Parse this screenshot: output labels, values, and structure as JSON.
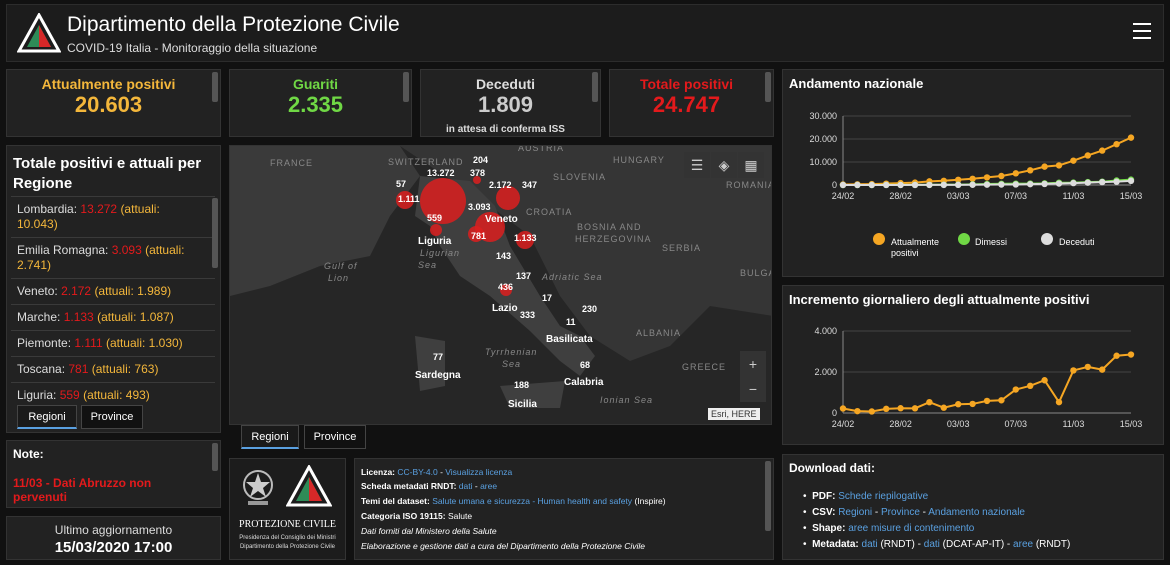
{
  "header": {
    "title": "Dipartimento della Protezione Civile",
    "subtitle": "COVID-19 Italia - Monitoraggio della situazione"
  },
  "stats": {
    "attualmente_positivi": {
      "label": "Attualmente positivi",
      "value": "20.603",
      "color": "#f4b73b"
    },
    "guariti": {
      "label": "Guariti",
      "value": "2.335",
      "color": "#70d845"
    },
    "deceduti": {
      "label": "Deceduti",
      "value": "1.809",
      "note": "in attesa di conferma ISS",
      "color": "#cccccc"
    },
    "totale_positivi": {
      "label": "Totale positivi",
      "value": "24.747",
      "color": "#e31a1c"
    }
  },
  "regions": {
    "title_line1": "Totale positivi e attuali per",
    "title_line2": "Regione",
    "items": [
      {
        "name": "Lombardia:",
        "total": "13.272",
        "attuali": "(attuali:",
        "attuali_value": "10.043)"
      },
      {
        "name": "Emilia Romagna:",
        "total": "3.093",
        "attuali": "(attuali:",
        "attuali_value": "2.741)"
      },
      {
        "name": "Veneto:",
        "total": "2.172",
        "attuali": "(attuali: 1.989)"
      },
      {
        "name": "Marche:",
        "total": "1.133",
        "attuali": "(attuali: 1.087)"
      },
      {
        "name": "Piemonte:",
        "total": "1.111",
        "attuali": "(attuali: 1.030)"
      },
      {
        "name": "Toscana:",
        "total": "781",
        "attuali": "(attuali: 763)"
      },
      {
        "name": "Liguria:",
        "total": "559",
        "attuali": "(attuali: 493)"
      }
    ],
    "tabs": [
      "Regioni",
      "Province"
    ]
  },
  "notes": {
    "title": "Note:",
    "line1": "11/03 - Dati Abruzzo non",
    "line2": "pervenuti"
  },
  "update": {
    "label": "Ultimo aggiornamento",
    "value": "15/03/2020 17:00"
  },
  "map": {
    "countries": [
      "FRANCE",
      "SWITZERLAND",
      "AUSTRIA",
      "HUNGARY",
      "SLOVENIA",
      "ROMANIA",
      "CROATIA",
      "BOSNIA AND",
      "HERZEGOVINA",
      "SERBIA",
      "BULGA",
      "ALBANIA",
      "GREECE"
    ],
    "seas": [
      "Gulf of",
      "Lion",
      "Ligurian",
      "Sea",
      "Adriatic Sea",
      "Tyrrhenian",
      "Sea",
      "Ionian Sea"
    ],
    "region_names": [
      "Liguria",
      "Veneto",
      "Lazio",
      "Basilicata",
      "Sardegna",
      "Calabria",
      "Sicilia"
    ],
    "numbers": [
      "13.272",
      "204",
      "378",
      "2.172",
      "347",
      "57",
      "1.111",
      "559",
      "3.093",
      "781",
      "1.133",
      "143",
      "137",
      "436",
      "17",
      "333",
      "230",
      "11",
      "77",
      "68",
      "188"
    ],
    "attribution": "Esri, HERE",
    "tabs": [
      "Regioni",
      "Province"
    ],
    "zoom_in": "+",
    "zoom_out": "−"
  },
  "logo": {
    "line1": "PROTEZIONE CIVILE",
    "line2": "Presidenza del Consiglio dei Ministri",
    "line3": "Dipartimento della Protezione Civile"
  },
  "info": {
    "licenza_label": "Licenza:",
    "licenza_link1": "CC-BY-4.0",
    "licenza_link2": "Visualizza licenza",
    "rndt_label": "Scheda metadati RNDT:",
    "rndt_link1": "dati",
    "rndt_link2": "aree",
    "temi_label": "Temi del dataset:",
    "temi_link": "Salute umana e sicurezza - Human health and safety",
    "temi_suffix": "(Inspire)",
    "iso_label": "Categoria ISO 19115:",
    "iso_value": "Salute",
    "dati_forniti": "Dati forniti dal Ministero della Salute",
    "elaborazione": "Elaborazione e gestione dati a cura del Dipartimento della Protezione Civile"
  },
  "download": {
    "title": "Download dati:",
    "pdf_label": "PDF:",
    "pdf_link": "Schede riepilogative",
    "csv_label": "CSV:",
    "csv_link1": "Regioni",
    "csv_link2": "Province",
    "csv_link3": "Andamento nazionale",
    "shape_label": "Shape:",
    "shape_link": "aree misure di contenimento",
    "meta_label": "Metadata:",
    "meta_link1": "dati",
    "meta_text1": "(RNDT)",
    "meta_link2": "dati",
    "meta_text2": "(DCAT-AP-IT)",
    "meta_link3": "aree",
    "meta_text3": "(RNDT)"
  },
  "chart_data": [
    {
      "type": "line",
      "title": "Andamento nazionale",
      "x": [
        "24/02",
        "25/02",
        "26/02",
        "27/02",
        "28/02",
        "29/02",
        "01/03",
        "02/03",
        "03/03",
        "04/03",
        "05/03",
        "06/03",
        "07/03",
        "08/03",
        "09/03",
        "10/03",
        "11/03",
        "12/03",
        "13/03",
        "14/03",
        "15/03"
      ],
      "xticks": [
        "24/02",
        "28/02",
        "03/03",
        "07/03",
        "11/03",
        "15/03"
      ],
      "yticks": [
        "0",
        "10.000",
        "20.000",
        "30.000"
      ],
      "ylim": [
        0,
        30000
      ],
      "series": [
        {
          "name": "Attualmente positivi",
          "color": "#f5a623",
          "values": [
            221,
            311,
            385,
            588,
            821,
            1049,
            1577,
            1835,
            2263,
            2706,
            3296,
            3916,
            5061,
            6387,
            7985,
            8514,
            10590,
            12839,
            14955,
            17750,
            20603
          ]
        },
        {
          "name": "Dimessi",
          "color": "#70d845",
          "values": [
            1,
            1,
            3,
            45,
            46,
            50,
            83,
            149,
            160,
            276,
            414,
            523,
            589,
            622,
            724,
            1004,
            1045,
            1258,
            1439,
            1966,
            2335
          ]
        },
        {
          "name": "Deceduti",
          "color": "#dddddd",
          "values": [
            7,
            10,
            12,
            17,
            21,
            29,
            34,
            52,
            79,
            107,
            148,
            197,
            233,
            366,
            463,
            631,
            827,
            1016,
            1266,
            1441,
            1809
          ]
        }
      ],
      "legend": [
        "Attualmente",
        "positivi",
        "Dimessi",
        "Deceduti"
      ]
    },
    {
      "type": "line",
      "title": "Incremento giornaliero degli attualmente positivi",
      "x": [
        "24/02",
        "25/02",
        "26/02",
        "27/02",
        "28/02",
        "29/02",
        "01/03",
        "02/03",
        "03/03",
        "04/03",
        "05/03",
        "06/03",
        "07/03",
        "08/03",
        "09/03",
        "10/03",
        "11/03",
        "12/03",
        "13/03",
        "14/03",
        "15/03"
      ],
      "xticks": [
        "24/02",
        "28/02",
        "03/03",
        "07/03",
        "11/03",
        "15/03"
      ],
      "yticks": [
        "0",
        "2.000",
        "4.000"
      ],
      "ylim": [
        0,
        4000
      ],
      "series": [
        {
          "name": "Incremento",
          "color": "#f5a623",
          "values": [
            221,
            90,
            74,
            203,
            233,
            228,
            528,
            258,
            428,
            443,
            590,
            620,
            1145,
            1326,
            1598,
            529,
            2076,
            2249,
            2116,
            2795,
            2853
          ]
        }
      ]
    }
  ]
}
